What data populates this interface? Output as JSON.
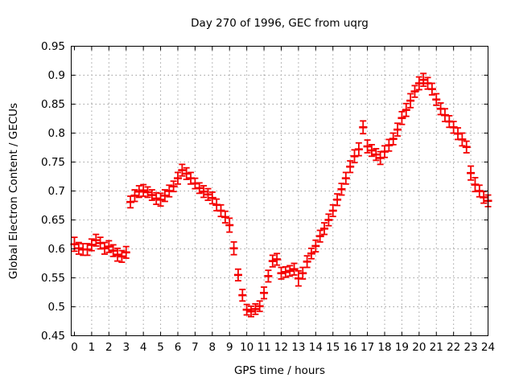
{
  "title": "Day 270 of 1996, GEC from uqrg",
  "xlabel": "GPS time / hours",
  "ylabel": "Global Electron Content / GECUs",
  "colors": {
    "series": "#f40000",
    "grid": "#a0a0a0",
    "axis": "#000000",
    "background": "#ffffff",
    "text": "#000000"
  },
  "chart_data": {
    "type": "scatter",
    "marker": "errorbar",
    "title": "Day 270 of 1996, GEC from uqrg",
    "xlabel": "GPS time / hours",
    "ylabel": "Global Electron Content / GECUs",
    "xlim": [
      0,
      24
    ],
    "ylim": [
      0.45,
      0.95
    ],
    "xtick_step": 1,
    "ytick_step": 0.05,
    "grid": true,
    "legend": "none",
    "x": [
      0,
      0.25,
      0.5,
      0.75,
      1,
      1.25,
      1.5,
      1.75,
      2,
      2.25,
      2.5,
      2.75,
      3,
      3.25,
      3.5,
      3.75,
      4,
      4.25,
      4.5,
      4.75,
      5,
      5.25,
      5.5,
      5.75,
      6,
      6.25,
      6.5,
      6.75,
      7,
      7.25,
      7.5,
      7.75,
      8,
      8.25,
      8.5,
      8.75,
      9,
      9.25,
      9.5,
      9.75,
      10,
      10.25,
      10.5,
      10.75,
      11,
      11.25,
      11.5,
      11.75,
      12,
      12.25,
      12.5,
      12.75,
      13,
      13.25,
      13.5,
      13.75,
      14,
      14.25,
      14.5,
      14.75,
      15,
      15.25,
      15.5,
      15.75,
      16,
      16.25,
      16.5,
      16.75,
      17,
      17.25,
      17.5,
      17.75,
      18,
      18.25,
      18.5,
      18.75,
      19,
      19.25,
      19.5,
      19.75,
      20,
      20.25,
      20.5,
      20.75,
      21,
      21.25,
      21.5,
      21.75,
      22,
      22.25,
      22.5,
      22.75,
      23,
      23.25,
      23.5,
      23.75,
      24
    ],
    "y": [
      0.608,
      0.601,
      0.599,
      0.599,
      0.607,
      0.615,
      0.61,
      0.601,
      0.604,
      0.597,
      0.59,
      0.587,
      0.594,
      0.681,
      0.692,
      0.699,
      0.701,
      0.698,
      0.693,
      0.687,
      0.685,
      0.692,
      0.7,
      0.708,
      0.722,
      0.736,
      0.73,
      0.722,
      0.713,
      0.705,
      0.699,
      0.694,
      0.688,
      0.676,
      0.666,
      0.655,
      0.641,
      0.601,
      0.555,
      0.52,
      0.495,
      0.492,
      0.496,
      0.501,
      0.524,
      0.553,
      0.579,
      0.582,
      0.558,
      0.56,
      0.562,
      0.565,
      0.549,
      0.558,
      0.578,
      0.592,
      0.605,
      0.622,
      0.635,
      0.65,
      0.666,
      0.685,
      0.703,
      0.722,
      0.742,
      0.76,
      0.772,
      0.81,
      0.777,
      0.77,
      0.763,
      0.757,
      0.768,
      0.779,
      0.79,
      0.806,
      0.826,
      0.84,
      0.856,
      0.872,
      0.886,
      0.892,
      0.886,
      0.876,
      0.858,
      0.842,
      0.831,
      0.82,
      0.81,
      0.799,
      0.789,
      0.776,
      0.731,
      0.711,
      0.7,
      0.689,
      0.683
    ],
    "yerr": [
      0.012,
      0.01,
      0.01,
      0.01,
      0.01,
      0.01,
      0.01,
      0.01,
      0.01,
      0.01,
      0.011,
      0.01,
      0.01,
      0.01,
      0.01,
      0.01,
      0.01,
      0.009,
      0.009,
      0.01,
      0.011,
      0.01,
      0.01,
      0.009,
      0.01,
      0.01,
      0.01,
      0.01,
      0.009,
      0.009,
      0.01,
      0.01,
      0.01,
      0.01,
      0.01,
      0.01,
      0.012,
      0.011,
      0.01,
      0.01,
      0.009,
      0.009,
      0.009,
      0.009,
      0.01,
      0.01,
      0.01,
      0.01,
      0.01,
      0.009,
      0.009,
      0.01,
      0.013,
      0.01,
      0.01,
      0.009,
      0.01,
      0.01,
      0.01,
      0.01,
      0.01,
      0.01,
      0.01,
      0.01,
      0.01,
      0.011,
      0.011,
      0.011,
      0.011,
      0.01,
      0.01,
      0.011,
      0.01,
      0.01,
      0.01,
      0.011,
      0.011,
      0.011,
      0.012,
      0.01,
      0.011,
      0.011,
      0.01,
      0.01,
      0.01,
      0.01,
      0.011,
      0.01,
      0.01,
      0.01,
      0.011,
      0.01,
      0.012,
      0.012,
      0.01,
      0.01,
      0.01
    ],
    "xtick_labels": [
      "0",
      "1",
      "2",
      "3",
      "4",
      "5",
      "6",
      "7",
      "8",
      "9",
      "10",
      "11",
      "12",
      "13",
      "14",
      "15",
      "16",
      "17",
      "18",
      "19",
      "20",
      "21",
      "22",
      "23",
      "24"
    ],
    "ytick_labels": [
      "0.45",
      "0.5",
      "0.55",
      "0.6",
      "0.65",
      "0.7",
      "0.75",
      "0.8",
      "0.85",
      "0.9",
      "0.95"
    ]
  }
}
